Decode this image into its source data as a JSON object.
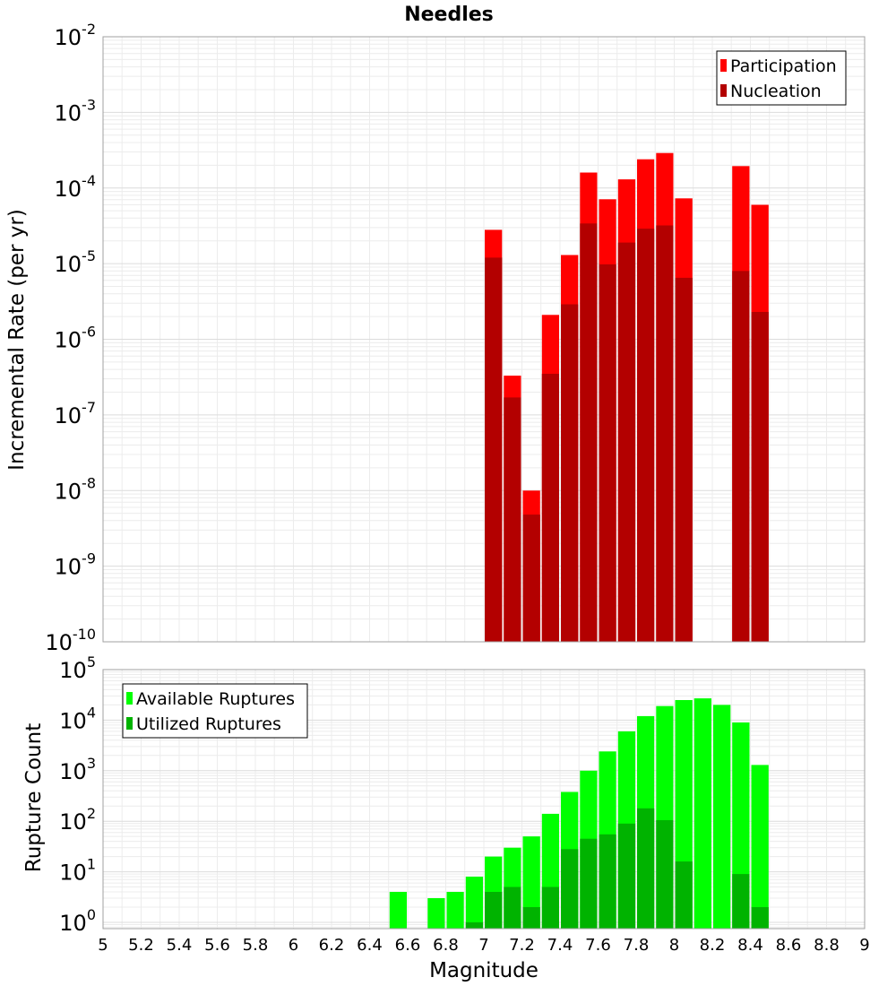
{
  "chart_data": [
    {
      "type": "bar",
      "title": "Needles",
      "xlabel": "",
      "ylabel": "Incremental Rate (per yr)",
      "yscale": "log",
      "ylim": [
        1e-10,
        0.01
      ],
      "xlim": [
        5,
        9
      ],
      "bin_width": 0.1,
      "legend": "top-right",
      "series": [
        {
          "name": "Participation",
          "color": "#ff0000",
          "x": [
            7.05,
            7.15,
            7.25,
            7.35,
            7.45,
            7.55,
            7.65,
            7.75,
            7.85,
            7.95,
            8.05,
            8.35,
            8.45
          ],
          "values": [
            2.8e-05,
            3.3e-07,
            1e-08,
            2.1e-06,
            1.3e-05,
            0.00016,
            7.1e-05,
            0.00013,
            0.00024,
            0.00029,
            7.3e-05,
            0.000195,
            6e-05
          ]
        },
        {
          "name": "Nucleation",
          "color": "#b30000",
          "x": [
            7.05,
            7.15,
            7.25,
            7.35,
            7.45,
            7.55,
            7.65,
            7.75,
            7.85,
            7.95,
            8.05,
            8.35,
            8.45
          ],
          "values": [
            1.2e-05,
            1.7e-07,
            4.8e-09,
            3.5e-07,
            2.9e-06,
            3.4e-05,
            9.8e-06,
            1.9e-05,
            2.9e-05,
            3.2e-05,
            6.5e-06,
            8e-06,
            2.3e-06
          ]
        }
      ]
    },
    {
      "type": "bar",
      "title": "",
      "xlabel": "Magnitude",
      "ylabel": "Rupture Count",
      "yscale": "log",
      "ylim": [
        0.75,
        100000
      ],
      "xlim": [
        5,
        9
      ],
      "bin_width": 0.1,
      "legend": "top-left",
      "series": [
        {
          "name": "Available Ruptures",
          "color": "#00ff00",
          "x": [
            6.55,
            6.75,
            6.85,
            6.95,
            7.05,
            7.15,
            7.25,
            7.35,
            7.45,
            7.55,
            7.65,
            7.75,
            7.85,
            7.95,
            8.05,
            8.15,
            8.25,
            8.35,
            8.45
          ],
          "values": [
            4,
            3,
            4,
            8,
            20,
            30,
            50,
            140,
            380,
            1000,
            2400,
            6000,
            12000,
            19000,
            25000,
            27000,
            20000,
            9000,
            1300
          ]
        },
        {
          "name": "Utilized Ruptures",
          "color": "#00b300",
          "x": [
            6.95,
            7.05,
            7.15,
            7.25,
            7.35,
            7.45,
            7.55,
            7.65,
            7.75,
            7.85,
            7.95,
            8.05,
            8.35,
            8.45
          ],
          "values": [
            1,
            4,
            5,
            2,
            5,
            28,
            45,
            55,
            90,
            180,
            105,
            16,
            9,
            2
          ]
        }
      ]
    }
  ],
  "top_axis": {
    "y_ticks": [
      {
        "base": "10",
        "exp": "-2",
        "value": 0.01
      },
      {
        "base": "10",
        "exp": "-3",
        "value": 0.001
      },
      {
        "base": "10",
        "exp": "-4",
        "value": 0.0001
      },
      {
        "base": "10",
        "exp": "-5",
        "value": 1e-05
      },
      {
        "base": "10",
        "exp": "-6",
        "value": 1e-06
      },
      {
        "base": "10",
        "exp": "-7",
        "value": 1e-07
      },
      {
        "base": "10",
        "exp": "-8",
        "value": 1e-08
      },
      {
        "base": "10",
        "exp": "-9",
        "value": 1e-09
      },
      {
        "base": "10",
        "exp": "-10",
        "value": 1e-10
      }
    ]
  },
  "bottom_axis": {
    "y_ticks": [
      {
        "base": "10",
        "exp": "0",
        "value": 1
      },
      {
        "base": "10",
        "exp": "1",
        "value": 10
      },
      {
        "base": "10",
        "exp": "2",
        "value": 100
      },
      {
        "base": "10",
        "exp": "3",
        "value": 1000
      },
      {
        "base": "10",
        "exp": "4",
        "value": 10000
      },
      {
        "base": "10",
        "exp": "5",
        "value": 100000
      }
    ],
    "x_ticks": [
      "5",
      "5.2",
      "5.4",
      "5.6",
      "5.8",
      "6",
      "6.2",
      "6.4",
      "6.6",
      "6.8",
      "7",
      "7.2",
      "7.4",
      "7.6",
      "7.8",
      "8",
      "8.2",
      "8.4",
      "8.6",
      "8.8",
      "9"
    ]
  }
}
